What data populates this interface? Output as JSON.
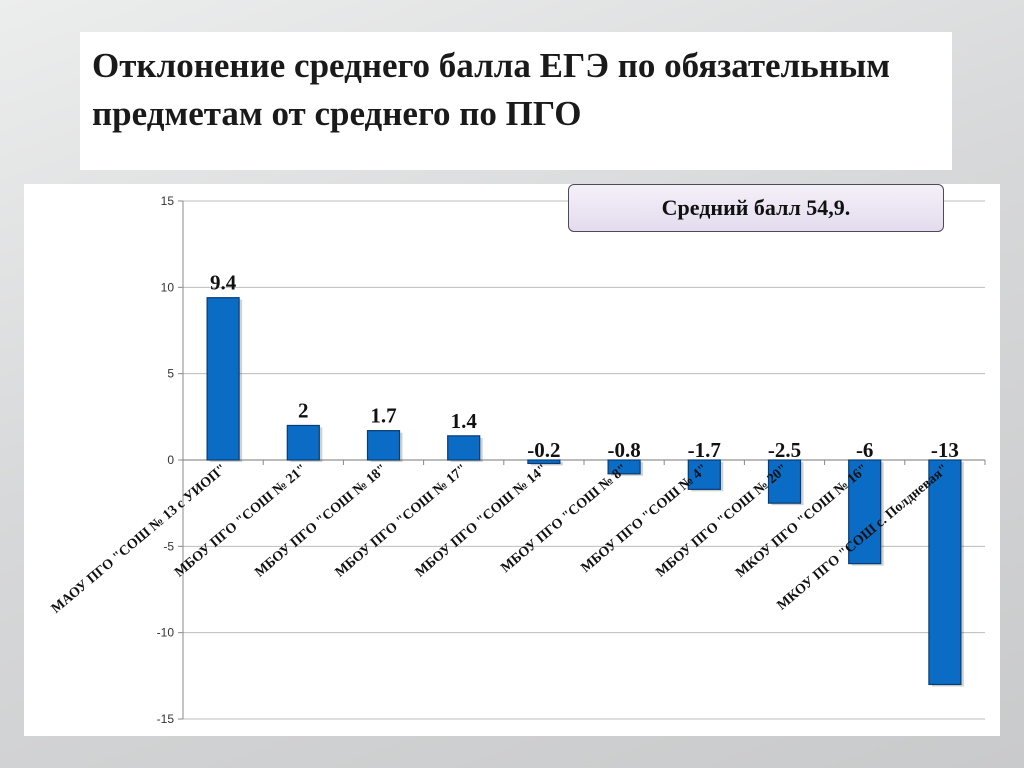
{
  "title": "Отклонение среднего балла ЕГЭ по обязательным предметам от среднего по ПГО",
  "average_badge": "Средний балл 54,9.",
  "colors": {
    "bar": "#0a6cc4",
    "bar_edge": "#083c74",
    "grid": "#bdbdbd"
  },
  "chart_data": {
    "type": "bar",
    "title": "",
    "xlabel": "",
    "ylabel": "",
    "ylim": [
      -15,
      15
    ],
    "yticks": [
      -15,
      -10,
      -5,
      0,
      5,
      10,
      15
    ],
    "grid": true,
    "categories": [
      "МАОУ ПГО \"СОШ № 13 с УИОП\"",
      "МБОУ ПГО \"СОШ № 21\"",
      "МБОУ ПГО \"СОШ № 18\"",
      "МБОУ ПГО \"СОШ № 17\"",
      "МБОУ ПГО \"СОШ № 14\"",
      "МБОУ ПГО \"СОШ № 8\"",
      "МБОУ ПГО \"СОШ № 4\"",
      "МБОУ ПГО \"СОШ № 20\"",
      "МКОУ ПГО \"СОШ № 16\"",
      "МКОУ ПГО \"СОШ с. Полдневая\""
    ],
    "values": [
      9.4,
      2,
      1.7,
      1.4,
      -0.2,
      -0.8,
      -1.7,
      -2.5,
      -6,
      -13
    ]
  }
}
